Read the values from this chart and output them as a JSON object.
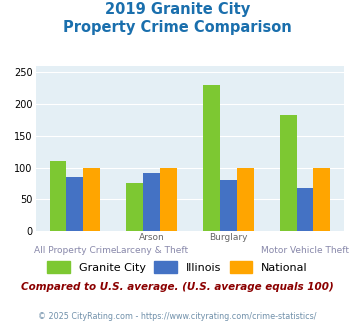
{
  "title_line1": "2019 Granite City",
  "title_line2": "Property Crime Comparison",
  "granite_city": [
    110,
    75,
    230,
    182
  ],
  "illinois": [
    85,
    92,
    80,
    68
  ],
  "national": [
    100,
    100,
    100,
    100
  ],
  "bar_colors": {
    "granite_city": "#7dc832",
    "illinois": "#4472c4",
    "national": "#ffa500"
  },
  "ylim": [
    0,
    260
  ],
  "yticks": [
    0,
    50,
    100,
    150,
    200,
    250
  ],
  "legend_labels": [
    "Granite City",
    "Illinois",
    "National"
  ],
  "top_labels": [
    "",
    "Arson",
    "Burglary",
    ""
  ],
  "bottom_labels": [
    "All Property Crime",
    "Larceny & Theft",
    "",
    "Motor Vehicle Theft"
  ],
  "footnote1": "Compared to U.S. average. (U.S. average equals 100)",
  "footnote2": "© 2025 CityRating.com - https://www.cityrating.com/crime-statistics/",
  "title_color": "#1a6fad",
  "footnote1_color": "#8b0000",
  "footnote2_color": "#7090aa",
  "plot_bg_color": "#e4eff5"
}
